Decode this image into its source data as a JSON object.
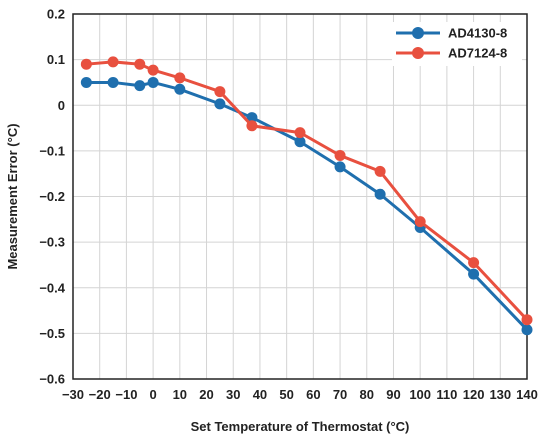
{
  "chart_data": {
    "type": "line",
    "xlabel": "Set Temperature of Thermostat (°C)",
    "ylabel": "Measurement Error (°C)",
    "xlim": [
      -30,
      140
    ],
    "ylim": [
      -0.6,
      0.2
    ],
    "x_ticks": [
      -30,
      -20,
      -10,
      0,
      10,
      20,
      30,
      40,
      50,
      60,
      70,
      80,
      90,
      100,
      110,
      120,
      130,
      140
    ],
    "x_tick_labels": [
      "−30",
      "−20",
      "−10",
      "0",
      "10",
      "20",
      "30",
      "40",
      "50",
      "60",
      "70",
      "80",
      "90",
      "100",
      "110",
      "120",
      "130",
      "140"
    ],
    "y_ticks": [
      -0.6,
      -0.5,
      -0.4,
      -0.3,
      -0.2,
      -0.1,
      0,
      0.1,
      0.2
    ],
    "y_tick_labels": [
      "−0.6",
      "−0.5",
      "−0.4",
      "−0.3",
      "−0.2",
      "−0.1",
      "0",
      "0.1",
      "0.2"
    ],
    "grid": true,
    "legend_position": "top-right",
    "series": [
      {
        "name": "AD4130-8",
        "color": "#1f6fae",
        "points": [
          {
            "x": -25,
            "y": 0.05
          },
          {
            "x": -15,
            "y": 0.05
          },
          {
            "x": -5,
            "y": 0.043
          },
          {
            "x": 0,
            "y": 0.05
          },
          {
            "x": 10,
            "y": 0.035
          },
          {
            "x": 25,
            "y": 0.003
          },
          {
            "x": 37,
            "y": -0.027
          },
          {
            "x": 55,
            "y": -0.08
          },
          {
            "x": 70,
            "y": -0.135
          },
          {
            "x": 85,
            "y": -0.195
          },
          {
            "x": 100,
            "y": -0.268
          },
          {
            "x": 120,
            "y": -0.37
          },
          {
            "x": 140,
            "y": -0.492
          }
        ]
      },
      {
        "name": "AD7124-8",
        "color": "#e8503f",
        "points": [
          {
            "x": -25,
            "y": 0.09
          },
          {
            "x": -15,
            "y": 0.095
          },
          {
            "x": -5,
            "y": 0.09
          },
          {
            "x": 0,
            "y": 0.077
          },
          {
            "x": 10,
            "y": 0.06
          },
          {
            "x": 25,
            "y": 0.03
          },
          {
            "x": 37,
            "y": -0.045
          },
          {
            "x": 55,
            "y": -0.06
          },
          {
            "x": 70,
            "y": -0.11
          },
          {
            "x": 85,
            "y": -0.145
          },
          {
            "x": 100,
            "y": -0.255
          },
          {
            "x": 120,
            "y": -0.345
          },
          {
            "x": 140,
            "y": -0.47
          }
        ]
      }
    ]
  }
}
